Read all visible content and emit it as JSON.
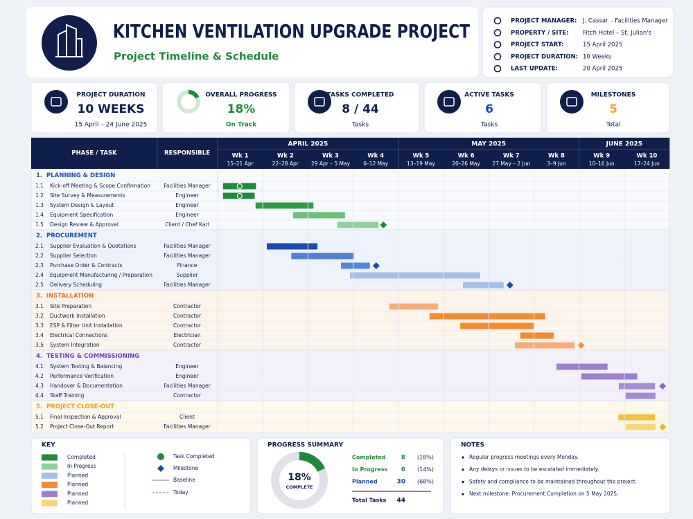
{
  "header": {
    "title": "KITCHEN VENTILATION UPGRADE PROJECT",
    "subtitle": "Project Timeline & Schedule",
    "info": [
      {
        "label": "PROJECT MANAGER:",
        "value": "J. Cassar – Facilities Manager"
      },
      {
        "label": "PROPERTY / SITE:",
        "value": "Fitch Hotel – St. Julian's"
      },
      {
        "label": "PROJECT START:",
        "value": "15 April 2025"
      },
      {
        "label": "PROJECT DURATION:",
        "value": "10 Weeks"
      },
      {
        "label": "LAST UPDATE:",
        "value": "20 April 2025"
      }
    ]
  },
  "kpis": [
    {
      "label": "PROJECT DURATION",
      "value": "10 WEEKS",
      "sub": "15 April – 24 June 2025",
      "color": "#0f1e4a"
    },
    {
      "label": "OVERALL PROGRESS",
      "value": "18%",
      "sub": "On Track",
      "color": "#1e8a3a"
    },
    {
      "label": "TASKS COMPLETED",
      "value": "8 / 44",
      "sub": "Tasks",
      "color": "#0f1e4a"
    },
    {
      "label": "ACTIVE TASKS",
      "value": "6",
      "sub": "Tasks",
      "color": "#1c49b0"
    },
    {
      "label": "MILESTONES",
      "value": "5",
      "sub": "Total",
      "color": "#f5a91f"
    }
  ],
  "gantt": {
    "col_task": "PHASE / TASK",
    "col_owner": "RESPONSIBLE",
    "xlim": [
      0,
      10
    ],
    "months": [
      {
        "name": "APRIL 2025",
        "span": 4
      },
      {
        "name": "MAY 2025",
        "span": 4
      },
      {
        "name": "JUNE 2025",
        "span": 2
      }
    ],
    "weeks": [
      {
        "name": "Wk 1",
        "dates": "15–21 Apr"
      },
      {
        "name": "Wk 2",
        "dates": "22–28 Apr"
      },
      {
        "name": "Wk 3",
        "dates": "29 Apr – 5 May"
      },
      {
        "name": "Wk 4",
        "dates": "6–12 May"
      },
      {
        "name": "Wk 5",
        "dates": "13–19 May"
      },
      {
        "name": "Wk 6",
        "dates": "20–26 May"
      },
      {
        "name": "Wk 7",
        "dates": "27 May – 2 Jun"
      },
      {
        "name": "Wk 8",
        "dates": "3–9 Jun"
      },
      {
        "name": "Wk 9",
        "dates": "10–16 Jun"
      },
      {
        "name": "Wk 10",
        "dates": "17–24 Jun"
      }
    ],
    "sections": [
      {
        "number": "1.",
        "name": "PLANNING & DESIGN",
        "color": "#1a4fb8",
        "bg": "#f7f9fd",
        "milestone_color": "#1e8a3a",
        "tasks": [
          {
            "id": "1.1",
            "name": "Kick-off Meeting & Scope Confirmation",
            "owner": "Facilities Manager",
            "start": 0.12,
            "end": 0.85,
            "color": "#1e8a3a",
            "done": true
          },
          {
            "id": "1.2",
            "name": "Site Survey & Measurements",
            "owner": "Engineer",
            "start": 0.12,
            "end": 0.82,
            "color": "#1e8a3a",
            "done": true
          },
          {
            "id": "1.3",
            "name": "System Design & Layout",
            "owner": "Engineer",
            "start": 0.84,
            "end": 2.12,
            "color": "#2e9e45"
          },
          {
            "id": "1.4",
            "name": "Equipment Specification",
            "owner": "Engineer",
            "start": 1.67,
            "end": 2.82,
            "color": "#6cc07a"
          },
          {
            "id": "1.5",
            "name": "Design Review & Approval",
            "owner": "Client / Chef Karl",
            "start": 2.65,
            "end": 3.56,
            "color": "#8fd19a",
            "milestone": 3.67
          }
        ]
      },
      {
        "number": "2.",
        "name": "PROCUREMENT",
        "color": "#1a4fb8",
        "bg": "#eef3fb",
        "milestone_color": "#1c49b0",
        "tasks": [
          {
            "id": "2.1",
            "name": "Supplier Evaluation & Quotations",
            "owner": "Facilities Manager",
            "start": 1.09,
            "end": 2.21,
            "color": "#1c49b0"
          },
          {
            "id": "2.2",
            "name": "Supplier Selection",
            "owner": "Facilities Manager",
            "start": 1.63,
            "end": 3.02,
            "color": "#4f7fd6"
          },
          {
            "id": "2.3",
            "name": "Purchase Order & Contracts",
            "owner": "Finance",
            "start": 2.73,
            "end": 3.37,
            "color": "#5a86d8",
            "milestone": 3.51
          },
          {
            "id": "2.4",
            "name": "Equipment Manufacturing / Preparation",
            "owner": "Supplier",
            "start": 2.93,
            "end": 5.81,
            "color": "#a6bfeb"
          },
          {
            "id": "2.5",
            "name": "Delivery Scheduling",
            "owner": "Facilities Manager",
            "start": 5.43,
            "end": 6.33,
            "color": "#a6bfeb",
            "milestone": 6.47
          }
        ]
      },
      {
        "number": "3.",
        "name": "INSTALLATION",
        "color": "#e8731a",
        "bg": "#fdf4ec",
        "milestone_color": "#f58a2e",
        "tasks": [
          {
            "id": "3.1",
            "name": "Site Preparation",
            "owner": "Contractor",
            "start": 3.8,
            "end": 4.88,
            "color": "#f6ad7a"
          },
          {
            "id": "3.2",
            "name": "Ductwork Installation",
            "owner": "Contractor",
            "start": 4.69,
            "end": 7.25,
            "color": "#f58a2e"
          },
          {
            "id": "3.3",
            "name": "ESP & Filter Unit Installation",
            "owner": "Contractor",
            "start": 5.37,
            "end": 7.01,
            "color": "#f58a2e"
          },
          {
            "id": "3.4",
            "name": "Electrical Connections",
            "owner": "Electrician",
            "start": 6.7,
            "end": 7.44,
            "color": "#f58a2e"
          },
          {
            "id": "3.5",
            "name": "System Integration",
            "owner": "Contractor",
            "start": 6.58,
            "end": 7.9,
            "color": "#f6ad7a",
            "milestone": 8.04
          }
        ]
      },
      {
        "number": "4.",
        "name": "TESTING & COMMISSIONING",
        "color": "#6a3fb0",
        "bg": "#f4f0fa",
        "milestone_color": "#8b67c8",
        "tasks": [
          {
            "id": "4.1",
            "name": "System Testing & Balancing",
            "owner": "Engineer",
            "start": 7.5,
            "end": 8.63,
            "color": "#9b7fd1"
          },
          {
            "id": "4.2",
            "name": "Performance Verification",
            "owner": "Engineer",
            "start": 8.05,
            "end": 9.29,
            "color": "#9b7fd1"
          },
          {
            "id": "4.3",
            "name": "Handover & Documentation",
            "owner": "Facilities Manager",
            "start": 8.88,
            "end": 9.68,
            "color": "#a58bd6",
            "milestone": 9.85
          },
          {
            "id": "4.4",
            "name": "Staff Training",
            "owner": "Contractor",
            "start": 9.03,
            "end": 9.69,
            "color": "#a58bd6"
          }
        ]
      },
      {
        "number": "5.",
        "name": "PROJECT CLOSE-OUT",
        "color": "#e8a417",
        "bg": "#fdf8ea",
        "milestone_color": "#f5b51f",
        "tasks": [
          {
            "id": "5.1",
            "name": "Final Inspection & Approval",
            "owner": "Client",
            "start": 8.87,
            "end": 9.68,
            "color": "#f5c03b"
          },
          {
            "id": "5.2",
            "name": "Project Close-Out Report",
            "owner": "Facilities Manager",
            "start": 9.03,
            "end": 9.69,
            "color": "#f8d57a",
            "milestone": 9.85
          }
        ]
      }
    ]
  },
  "key": {
    "title": "KEY",
    "swatches": [
      {
        "label": "Completed",
        "color": "#1e8a3a"
      },
      {
        "label": "In Progress",
        "color": "#8fd19a"
      },
      {
        "label": "Planned",
        "color": "#a6bfeb"
      },
      {
        "label": "Planned",
        "color": "#f58a2e"
      },
      {
        "label": "Planned",
        "color": "#9b7fd1"
      },
      {
        "label": "Planned",
        "color": "#f8d57a"
      }
    ],
    "symbols": [
      "Task Completed",
      "Milestone",
      "Baseline",
      "Today"
    ]
  },
  "summary": {
    "title": "PROGRESS SUMMARY",
    "donut": {
      "value": 18,
      "label": "18%",
      "caption": "COMPLETE"
    },
    "rows": [
      {
        "label": "Completed",
        "count": "8",
        "pct": "(18%)",
        "color": "#1e8a3a"
      },
      {
        "label": "In Progress",
        "count": "6",
        "pct": "(14%)",
        "color": "#1e8a3a"
      },
      {
        "label": "Planned",
        "count": "30",
        "pct": "(68%)",
        "color": "#1c49b0"
      }
    ],
    "total_label": "Total Tasks",
    "total": "44"
  },
  "notes": {
    "title": "NOTES",
    "items": [
      "Regular progress meetings every Monday.",
      "Any delays or issues to be escalated immediately.",
      "Safety and compliance to be maintained throughout the project.",
      "Next milestone: Procurement Completion on 5 May 2025."
    ]
  }
}
